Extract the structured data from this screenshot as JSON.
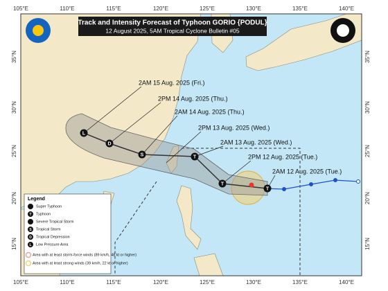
{
  "header": {
    "title": "Track and Intensity Forecast of Typhoon GORIO {PODUL}",
    "subtitle": "12 August 2025, 5AM Tropical Cyclone Bulletin #05"
  },
  "axes": {
    "longitudes": [
      "105°E",
      "110°E",
      "115°E",
      "120°E",
      "125°E",
      "130°E",
      "135°E",
      "140°E"
    ],
    "latitudes": [
      "35°N",
      "30°N",
      "25°N",
      "20°N",
      "15°N"
    ]
  },
  "forecast_labels": [
    "2AM 15 Aug. 2025 (Fri.)",
    "2PM 14 Aug. 2025 (Thu.)",
    "2AM 14 Aug. 2025 (Thu.)",
    "2PM 13 Aug. 2025 (Wed.)",
    "2AM 13 Aug. 2025 (Wed.)",
    "2PM 12 Aug. 2025 (Tue.)",
    "2AM 12 Aug. 2025 (Tue.)"
  ],
  "track_symbols": [
    "L",
    "D",
    "S",
    "T",
    "T",
    "T"
  ],
  "legend": {
    "title": "Legend",
    "items": [
      "Super Typhoon",
      "Typhoon",
      "Severe Tropical Storm",
      "Tropical Storm",
      "Tropical Depression",
      "Low Pressure Area"
    ],
    "areas": [
      "Area with at least storm-force winds (89 km/h, 48 kt or higher)",
      "Area with at least strong winds (39 km/h, 22 kt or higher)"
    ]
  }
}
